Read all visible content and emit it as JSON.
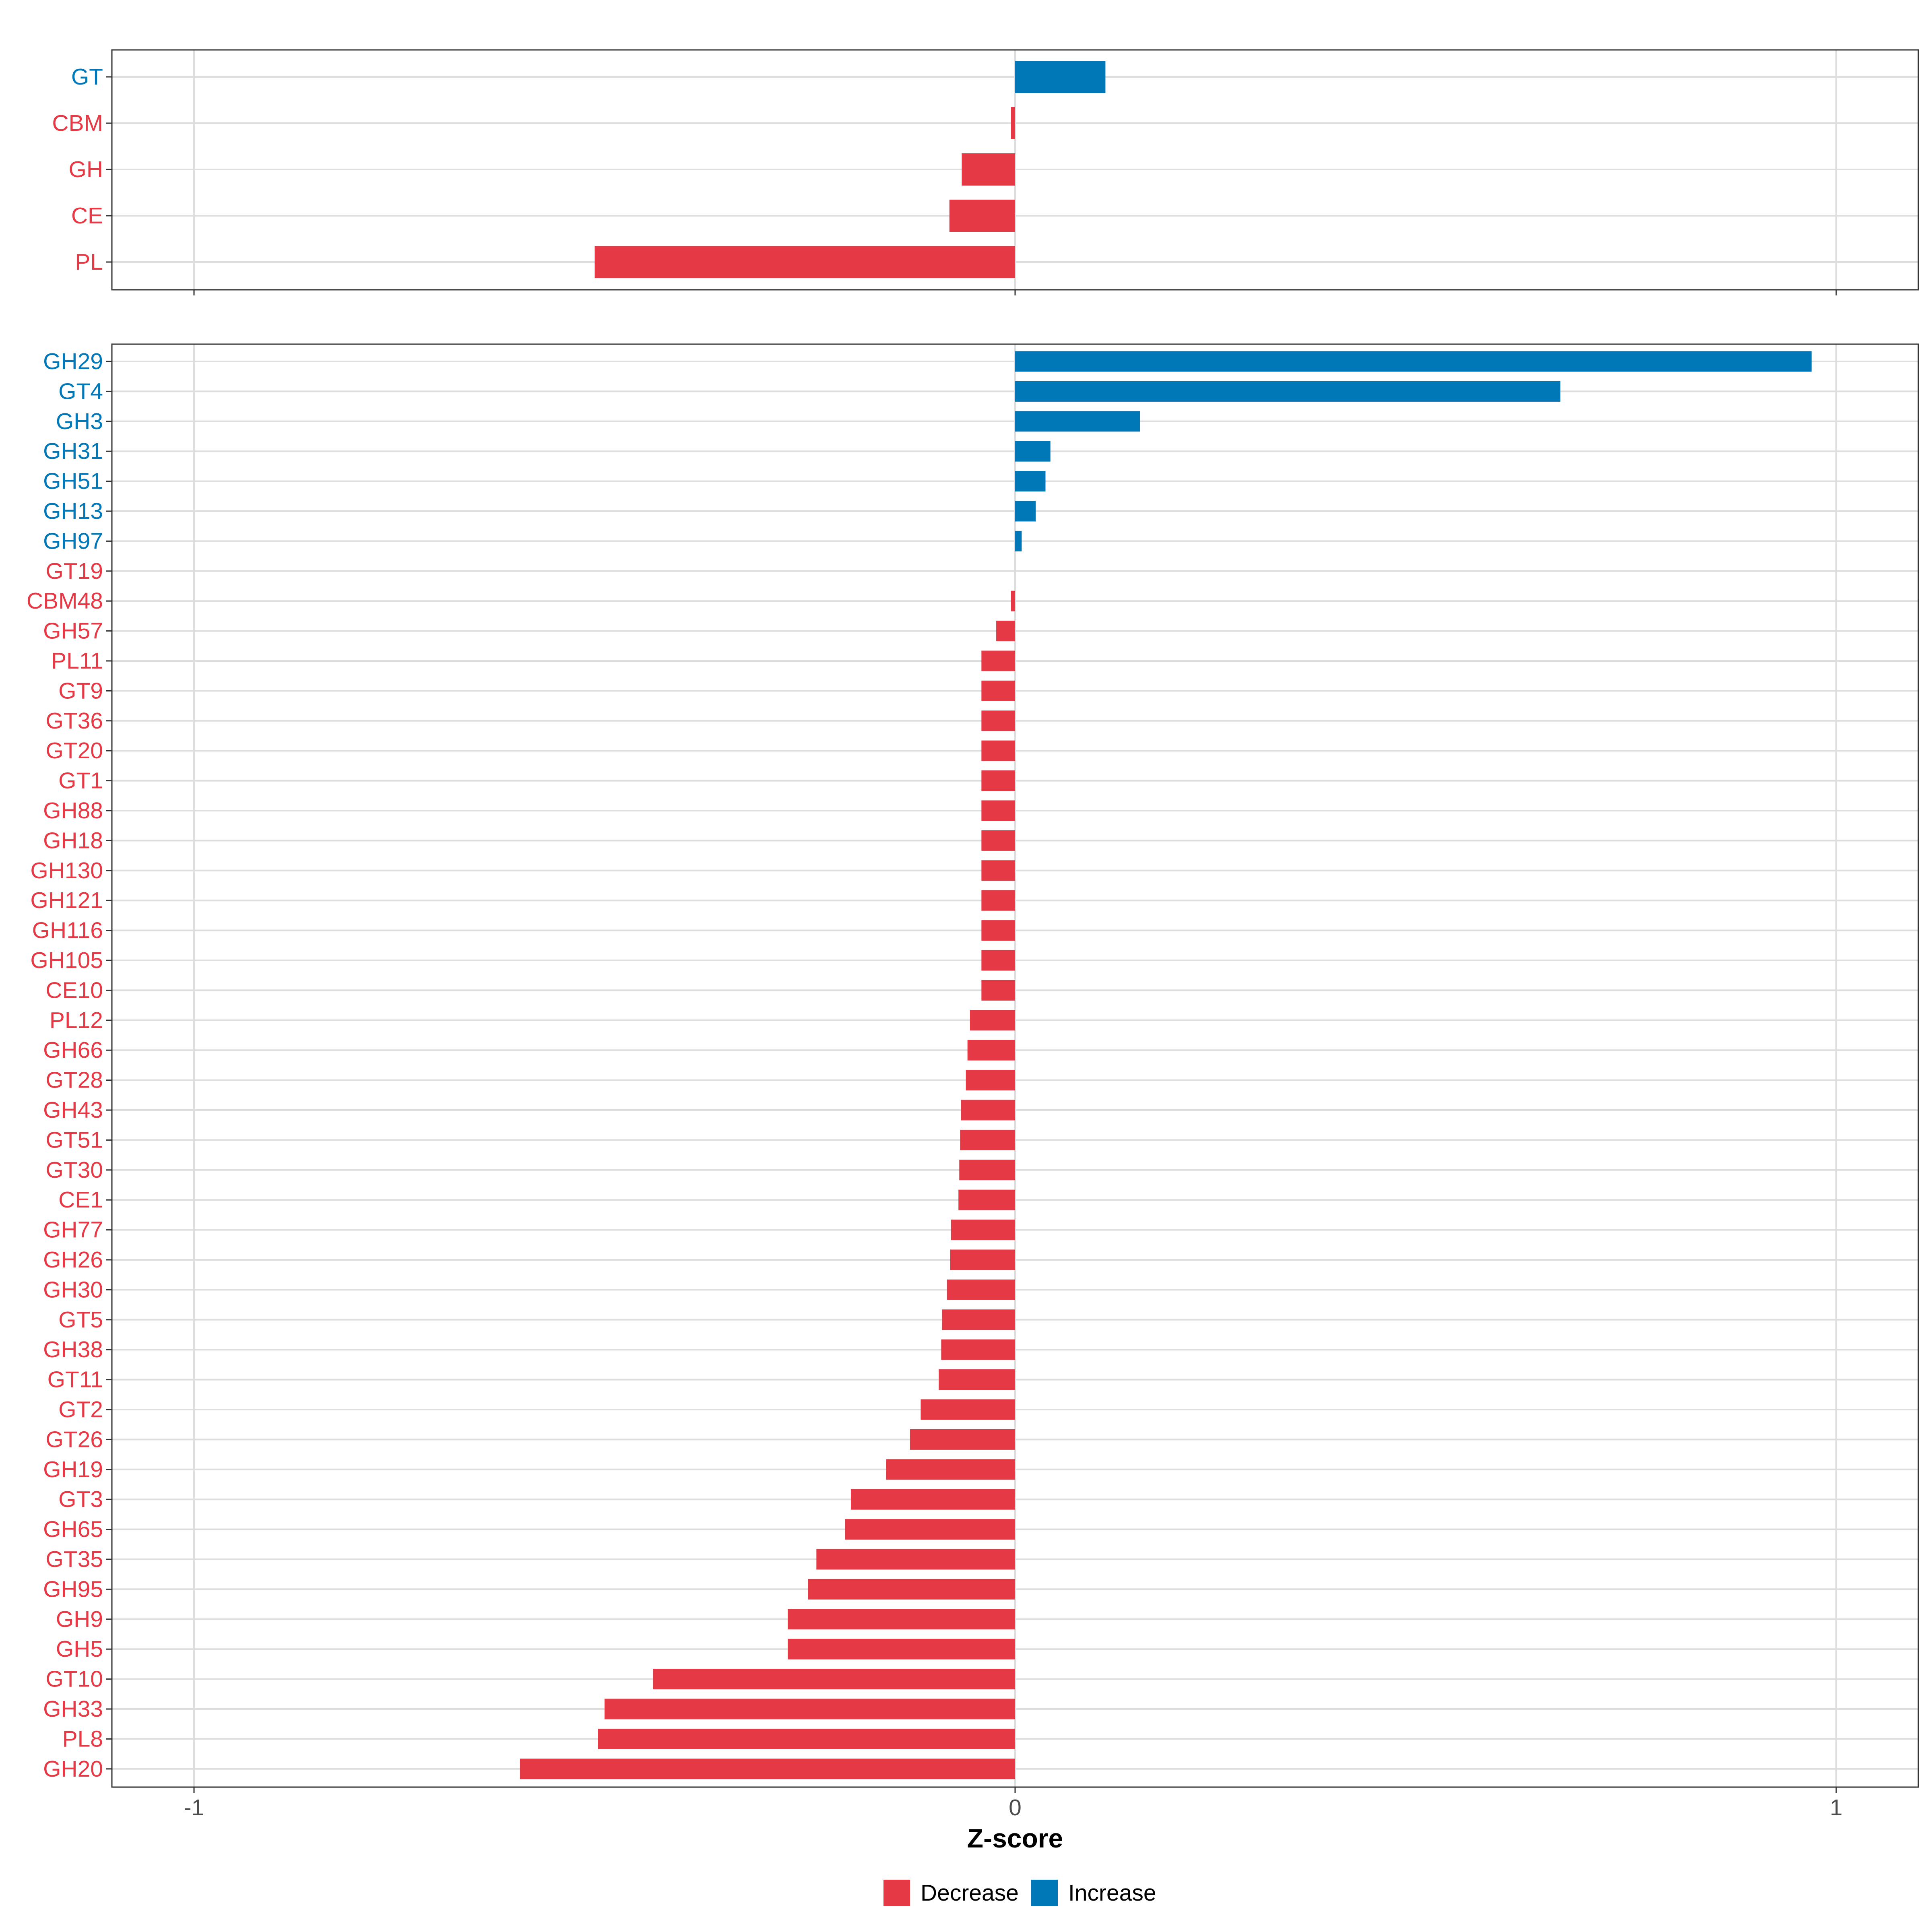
{
  "chart_data": {
    "type": "bar",
    "orientation": "horizontal",
    "xlabel": "Z-score",
    "xlim": [
      -1.1,
      1.1
    ],
    "x_ticks": [
      -1,
      0,
      1
    ],
    "x_tick_labels": [
      "-1",
      "0",
      "1"
    ],
    "colors": {
      "Decrease": "#E63946",
      "Increase": "#0077B6"
    },
    "legend": {
      "position": "bottom",
      "entries": [
        "Decrease",
        "Increase"
      ]
    },
    "panels": [
      {
        "name": "classes",
        "categories": [
          "GT",
          "CBM",
          "GH",
          "CE",
          "PL"
        ],
        "values": [
          0.11,
          -0.005,
          -0.065,
          -0.08,
          -0.512
        ],
        "direction": [
          "Increase",
          "Decrease",
          "Decrease",
          "Decrease",
          "Decrease"
        ]
      },
      {
        "name": "families",
        "categories": [
          "GH29",
          "GT4",
          "GH3",
          "GH31",
          "GH51",
          "GH13",
          "GH97",
          "GT19",
          "CBM48",
          "GH57",
          "PL11",
          "GT9",
          "GT36",
          "GT20",
          "GT1",
          "GH88",
          "GH18",
          "GH130",
          "GH121",
          "GH116",
          "GH105",
          "CE10",
          "PL12",
          "GH66",
          "GT28",
          "GH43",
          "GT51",
          "GT30",
          "CE1",
          "GH77",
          "GH26",
          "GH30",
          "GT5",
          "GH38",
          "GT11",
          "GT2",
          "GT26",
          "GH19",
          "GT3",
          "GH65",
          "GT35",
          "GH95",
          "GH9",
          "GH5",
          "GT10",
          "GH33",
          "PL8",
          "GH20"
        ],
        "values": [
          0.97,
          0.664,
          0.152,
          0.043,
          0.037,
          0.025,
          0.008,
          0.0,
          -0.005,
          -0.023,
          -0.041,
          -0.041,
          -0.041,
          -0.041,
          -0.041,
          -0.041,
          -0.041,
          -0.041,
          -0.041,
          -0.041,
          -0.041,
          -0.041,
          -0.055,
          -0.058,
          -0.06,
          -0.066,
          -0.067,
          -0.068,
          -0.069,
          -0.078,
          -0.079,
          -0.083,
          -0.089,
          -0.09,
          -0.093,
          -0.115,
          -0.128,
          -0.157,
          -0.2,
          -0.207,
          -0.242,
          -0.252,
          -0.277,
          -0.277,
          -0.441,
          -0.5,
          -0.508,
          -0.603
        ],
        "direction": [
          "Increase",
          "Increase",
          "Increase",
          "Increase",
          "Increase",
          "Increase",
          "Increase",
          "Decrease",
          "Decrease",
          "Decrease",
          "Decrease",
          "Decrease",
          "Decrease",
          "Decrease",
          "Decrease",
          "Decrease",
          "Decrease",
          "Decrease",
          "Decrease",
          "Decrease",
          "Decrease",
          "Decrease",
          "Decrease",
          "Decrease",
          "Decrease",
          "Decrease",
          "Decrease",
          "Decrease",
          "Decrease",
          "Decrease",
          "Decrease",
          "Decrease",
          "Decrease",
          "Decrease",
          "Decrease",
          "Decrease",
          "Decrease",
          "Decrease",
          "Decrease",
          "Decrease",
          "Decrease",
          "Decrease",
          "Decrease",
          "Decrease",
          "Decrease",
          "Decrease",
          "Decrease",
          "Decrease"
        ]
      }
    ]
  }
}
